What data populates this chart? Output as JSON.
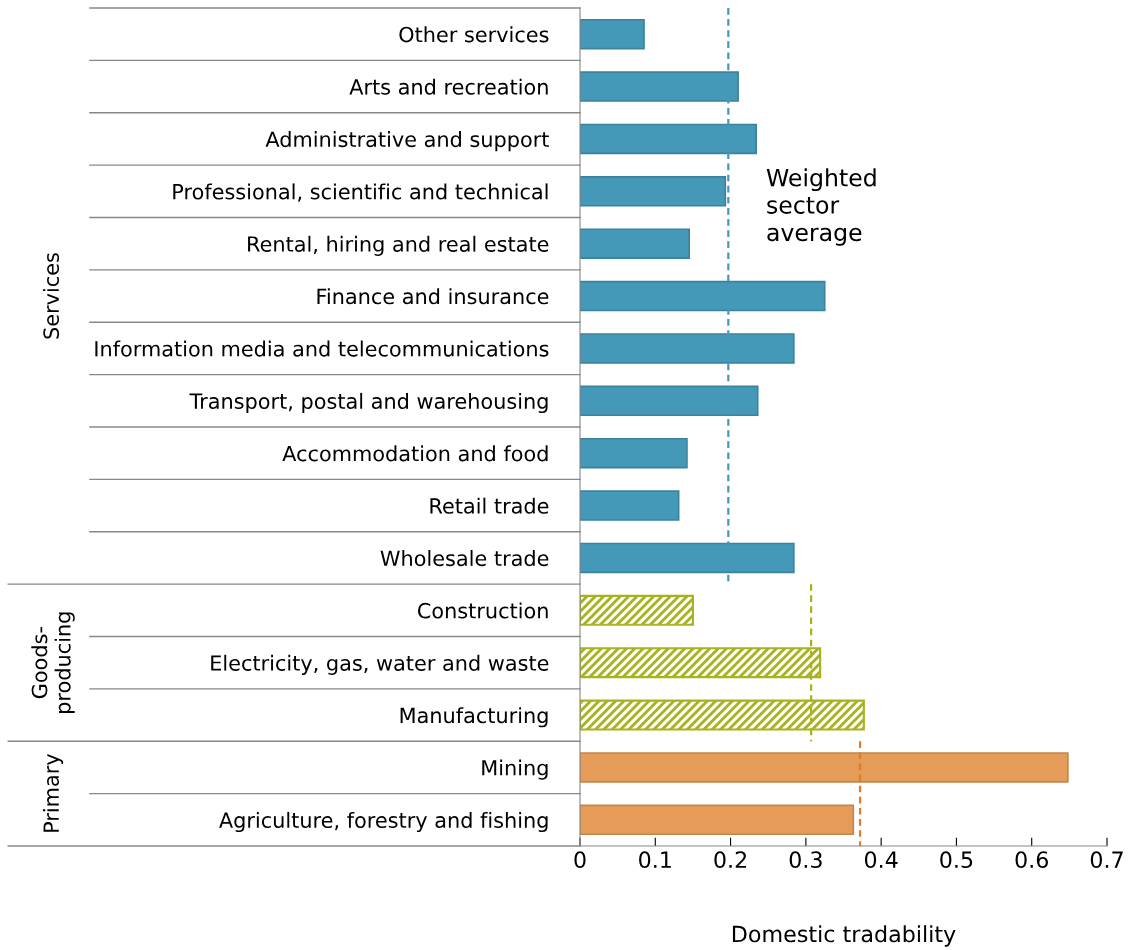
{
  "chart_data": {
    "type": "bar",
    "orientation": "horizontal",
    "xlabel": "Domestic tradability",
    "categories": [
      "Other services",
      "Arts and recreation",
      "Administrative and support",
      "Professional, scientific and technical",
      "Rental, hiring and real estate",
      "Finance and insurance",
      "Information media and telecommunications",
      "Transport, postal and warehousing",
      "Accommodation and food",
      "Retail trade",
      "Wholesale trade",
      "Construction",
      "Electricity, gas, water and waste",
      "Manufacturing",
      "Mining",
      "Agriculture, forestry and fishing"
    ],
    "series": [
      {
        "color": "#4599b8",
        "values": [
          0.085,
          0.21,
          0.234,
          0.193,
          0.145,
          0.325,
          0.284,
          0.236,
          0.142,
          0.131,
          0.284,
          null,
          null,
          null,
          null,
          null
        ]
      },
      {
        "color": "#a8b21c",
        "values": [
          null,
          null,
          null,
          null,
          null,
          null,
          null,
          null,
          null,
          null,
          null,
          0.15,
          0.319,
          0.377,
          null,
          null
        ]
      },
      {
        "color": "#e59c59",
        "values": [
          null,
          null,
          null,
          null,
          null,
          null,
          null,
          null,
          null,
          null,
          null,
          null,
          null,
          null,
          0.648,
          0.363
        ]
      }
    ],
    "ref_lines": [
      {
        "axis": "x",
        "value": 0.197,
        "color": "#4599b8",
        "line_style": "dashed",
        "label": "Weighted sector average"
      },
      {
        "axis": "x",
        "value": 0.307,
        "color": "#a8b21c",
        "line_style": "dashed"
      },
      {
        "axis": "x",
        "value": 0.372,
        "color": "#e07c28",
        "line_style": "dashed"
      }
    ],
    "annotations": [
      "Services",
      "Goods-producing",
      "Primary"
    ],
    "xlim": [
      0,
      0.7
    ],
    "xticks": [
      0,
      0.1,
      0.2,
      0.3,
      0.4,
      0.5,
      0.6,
      0.7
    ],
    "grid": false,
    "legend": false
  }
}
